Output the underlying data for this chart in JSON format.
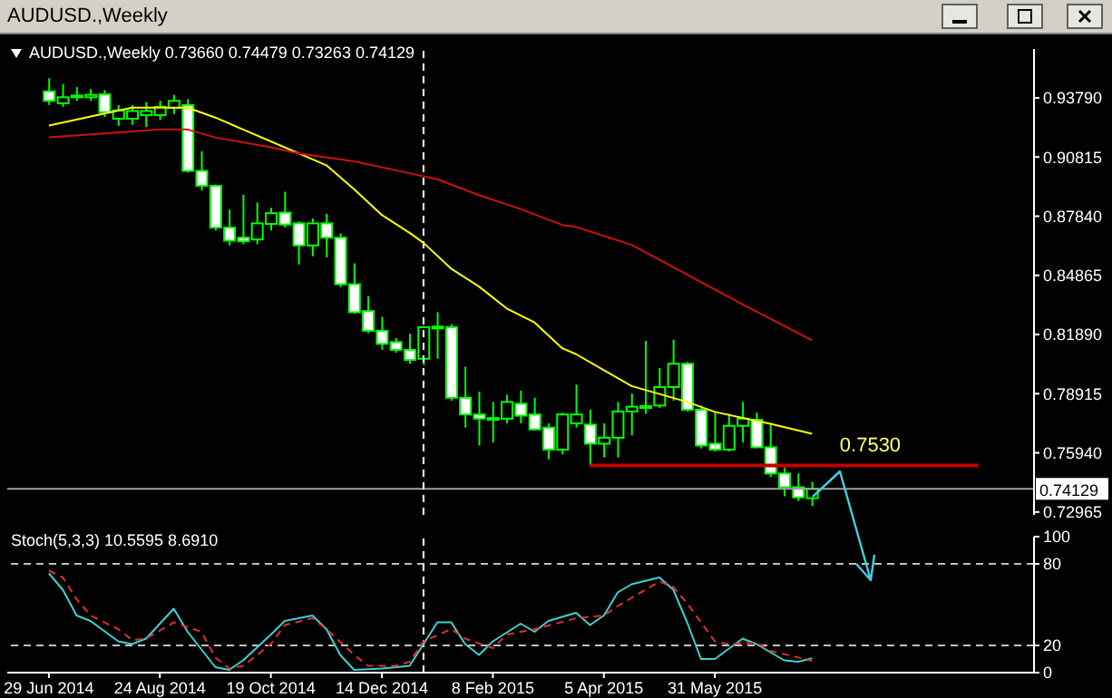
{
  "chart_data": [
    {
      "type": "candlestick",
      "title": "AUDUSD.,Weekly",
      "subtitle": "AUDUSD.,Weekly  0.73660 0.74479 0.73263 0.74129",
      "color": "#00ff00",
      "x": [
        "2014-06-29",
        "2014-07-06",
        "2014-07-13",
        "2014-07-20",
        "2014-07-27",
        "2014-08-03",
        "2014-08-10",
        "2014-08-17",
        "2014-08-24",
        "2014-08-31",
        "2014-09-07",
        "2014-09-14",
        "2014-09-21",
        "2014-09-28",
        "2014-10-05",
        "2014-10-12",
        "2014-10-19",
        "2014-10-26",
        "2014-11-02",
        "2014-11-09",
        "2014-11-16",
        "2014-11-23",
        "2014-11-30",
        "2014-12-07",
        "2014-12-14",
        "2014-12-21",
        "2014-12-28",
        "2015-01-04",
        "2015-01-11",
        "2015-01-18",
        "2015-01-25",
        "2015-02-01",
        "2015-02-08",
        "2015-02-15",
        "2015-02-22",
        "2015-03-01",
        "2015-03-08",
        "2015-03-15",
        "2015-03-22",
        "2015-03-29",
        "2015-04-05",
        "2015-04-12",
        "2015-04-19",
        "2015-04-26",
        "2015-05-03",
        "2015-05-10",
        "2015-05-17",
        "2015-05-24",
        "2015-05-31",
        "2015-06-07",
        "2015-06-14",
        "2015-06-21",
        "2015-06-28",
        "2015-07-05",
        "2015-07-12",
        "2015-07-19"
      ],
      "ohlc": [
        [
          0.9412,
          0.9478,
          0.9343,
          0.9364
        ],
        [
          0.9352,
          0.9448,
          0.9334,
          0.9382
        ],
        [
          0.9382,
          0.9433,
          0.9364,
          0.9391
        ],
        [
          0.9382,
          0.9424,
          0.9364,
          0.9394
        ],
        [
          0.9397,
          0.9418,
          0.9283,
          0.9307
        ],
        [
          0.9274,
          0.9343,
          0.9238,
          0.9316
        ],
        [
          0.9274,
          0.9343,
          0.9244,
          0.9313
        ],
        [
          0.9292,
          0.9358,
          0.9232,
          0.9313
        ],
        [
          0.9292,
          0.9364,
          0.9268,
          0.9334
        ],
        [
          0.9328,
          0.9394,
          0.9298,
          0.9364
        ],
        [
          0.9343,
          0.9373,
          0.9003,
          0.9012
        ],
        [
          0.9012,
          0.9111,
          0.8913,
          0.8937
        ],
        [
          0.8937,
          0.8943,
          0.8712,
          0.8727
        ],
        [
          0.8727,
          0.8817,
          0.8637,
          0.8661
        ],
        [
          0.8676,
          0.8892,
          0.8643,
          0.8658
        ],
        [
          0.8667,
          0.8853,
          0.8643,
          0.8748
        ],
        [
          0.8745,
          0.8826,
          0.8712,
          0.8799
        ],
        [
          0.8802,
          0.8907,
          0.8727,
          0.8742
        ],
        [
          0.8748,
          0.8757,
          0.8541,
          0.8637
        ],
        [
          0.8637,
          0.8772,
          0.8583,
          0.8748
        ],
        [
          0.8748,
          0.8796,
          0.8577,
          0.8676
        ],
        [
          0.8676,
          0.8697,
          0.8427,
          0.8442
        ],
        [
          0.8442,
          0.8547,
          0.8292,
          0.8301
        ],
        [
          0.8307,
          0.8382,
          0.8196,
          0.8208
        ],
        [
          0.8208,
          0.8277,
          0.8112,
          0.8142
        ],
        [
          0.8151,
          0.8172,
          0.8097,
          0.8112
        ],
        [
          0.8112,
          0.8193,
          0.8042,
          0.8061
        ],
        [
          0.8067,
          0.8232,
          0.8036,
          0.8226
        ],
        [
          0.8229,
          0.8301,
          0.8067,
          0.8223
        ],
        [
          0.8226,
          0.8241,
          0.7856,
          0.7871
        ],
        [
          0.7871,
          0.8027,
          0.7721,
          0.7787
        ],
        [
          0.7787,
          0.7901,
          0.7631,
          0.7766
        ],
        [
          0.7766,
          0.785,
          0.7646,
          0.7769
        ],
        [
          0.7766,
          0.7886,
          0.7742,
          0.785
        ],
        [
          0.7841,
          0.7907,
          0.7742,
          0.7781
        ],
        [
          0.7787,
          0.7871,
          0.7706,
          0.7712
        ],
        [
          0.7721,
          0.7742,
          0.7562,
          0.761
        ],
        [
          0.761,
          0.7796,
          0.7586,
          0.7787
        ],
        [
          0.7742,
          0.7937,
          0.7721,
          0.7787
        ],
        [
          0.7736,
          0.7811,
          0.7532,
          0.764
        ],
        [
          0.764,
          0.7742,
          0.7571,
          0.767
        ],
        [
          0.767,
          0.785,
          0.7571,
          0.7802
        ],
        [
          0.7802,
          0.7892,
          0.7682,
          0.7826
        ],
        [
          0.7826,
          0.8157,
          0.779,
          0.7829
        ],
        [
          0.7832,
          0.8021,
          0.782,
          0.7925
        ],
        [
          0.7925,
          0.8163,
          0.7856,
          0.8042
        ],
        [
          0.8042,
          0.8051,
          0.7802,
          0.7811
        ],
        [
          0.7811,
          0.7832,
          0.7616,
          0.7631
        ],
        [
          0.764,
          0.7796,
          0.7601,
          0.761
        ],
        [
          0.761,
          0.779,
          0.7601,
          0.773
        ],
        [
          0.773,
          0.785,
          0.7646,
          0.7766
        ],
        [
          0.776,
          0.7796,
          0.7616,
          0.7622
        ],
        [
          0.7622,
          0.7736,
          0.7472,
          0.749
        ],
        [
          0.749,
          0.752,
          0.7376,
          0.7421
        ],
        [
          0.7421,
          0.749,
          0.7352,
          0.737
        ],
        [
          0.7366,
          0.74479,
          0.73263,
          0.74129
        ]
      ],
      "series": [
        {
          "type": "line",
          "color": "#ffff00",
          "x": [
            "2014-06-29",
            "2014-07-27",
            "2014-08-10",
            "2014-08-24",
            "2014-09-07",
            "2014-09-21",
            "2014-10-05",
            "2014-10-19",
            "2014-11-02",
            "2014-11-16",
            "2014-11-30",
            "2014-12-14",
            "2014-12-28",
            "2015-01-04",
            "2015-01-18",
            "2015-02-01",
            "2015-02-15",
            "2015-03-01",
            "2015-03-15",
            "2015-03-22",
            "2015-04-05",
            "2015-04-19",
            "2015-05-03",
            "2015-05-17",
            "2015-05-31",
            "2015-06-14",
            "2015-06-28",
            "2015-07-19"
          ],
          "values": [
            0.924,
            0.93,
            0.933,
            0.933,
            0.933,
            0.928,
            0.922,
            0.916,
            0.91,
            0.904,
            0.892,
            0.879,
            0.87,
            0.865,
            0.852,
            0.843,
            0.832,
            0.825,
            0.812,
            0.809,
            0.801,
            0.793,
            0.789,
            0.785,
            0.78,
            0.777,
            0.774,
            0.769
          ]
        },
        {
          "type": "line",
          "color": "#d01010",
          "x": [
            "2014-06-29",
            "2014-07-27",
            "2014-08-24",
            "2014-09-07",
            "2014-09-21",
            "2014-10-19",
            "2014-11-02",
            "2014-11-30",
            "2014-12-28",
            "2015-01-11",
            "2015-02-01",
            "2015-02-22",
            "2015-03-15",
            "2015-03-22",
            "2015-04-19",
            "2015-05-17",
            "2015-06-14",
            "2015-07-19"
          ],
          "values": [
            0.918,
            0.92,
            0.922,
            0.922,
            0.918,
            0.913,
            0.91,
            0.906,
            0.9,
            0.897,
            0.889,
            0.882,
            0.874,
            0.873,
            0.864,
            0.849,
            0.834,
            0.816
          ]
        },
        {
          "type": "line",
          "color": "#c00000",
          "x": [
            "2015-03-29",
            "2015-10-11"
          ],
          "values": [
            0.753,
            0.753
          ]
        }
      ],
      "annotations": [
        {
          "text": "0.7530",
          "x": "2015-08-02",
          "y": 0.753
        }
      ],
      "ref_lines": [
        {
          "axis": "y",
          "value": 0.74129,
          "label": "0.74129",
          "color": "#a0a0a0"
        },
        {
          "axis": "x",
          "value": "2015-01-04",
          "color": "#ffffff",
          "line_style": "dashed"
        }
      ],
      "xlim": [
        "2014-06-08",
        "2015-11-08"
      ],
      "ylim": [
        0.7282,
        0.9625
      ],
      "yticks": [
        {
          "value": 0.9379,
          "label": "0.93790"
        },
        0.90815,
        {
          "value": 0.8784,
          "label": "0.87840"
        },
        0.84865,
        {
          "value": 0.8189,
          "label": "0.81890"
        },
        0.78915,
        {
          "value": 0.7594,
          "label": "0.75940"
        },
        0.72965
      ],
      "tick_labels": "y"
    },
    {
      "type": "line",
      "title": "Stoch(5,3,3) 10.5595 8.6910",
      "series": [
        {
          "color": "#40d0d0",
          "x": [
            "2014-06-29",
            "2014-07-06",
            "2014-07-13",
            "2014-07-20",
            "2014-08-03",
            "2014-08-10",
            "2014-08-17",
            "2014-08-31",
            "2014-09-07",
            "2014-09-21",
            "2014-09-28",
            "2014-10-05",
            "2014-10-19",
            "2014-10-26",
            "2014-11-09",
            "2014-11-16",
            "2014-11-23",
            "2014-11-30",
            "2014-12-14",
            "2014-12-28",
            "2015-01-04",
            "2015-01-11",
            "2015-01-18",
            "2015-01-25",
            "2015-02-01",
            "2015-02-08",
            "2015-02-22",
            "2015-03-01",
            "2015-03-08",
            "2015-03-22",
            "2015-03-29",
            "2015-04-05",
            "2015-04-12",
            "2015-04-19",
            "2015-05-03",
            "2015-05-10",
            "2015-05-17",
            "2015-05-24",
            "2015-05-31",
            "2015-06-14",
            "2015-06-21",
            "2015-07-05",
            "2015-07-12",
            "2015-07-19"
          ],
          "values": [
            73,
            61,
            42,
            38,
            23,
            21,
            25,
            47,
            30,
            4,
            2,
            9,
            28,
            38,
            42,
            32,
            13,
            2,
            3,
            5,
            21,
            37,
            37,
            21,
            13,
            23,
            36,
            30,
            38,
            44,
            35,
            42,
            59,
            65,
            70,
            61,
            37,
            10,
            10,
            25,
            21,
            9,
            8,
            10.5595
          ]
        },
        {
          "color": "#e03030",
          "line_style": "dashed",
          "x": [
            "2014-06-29",
            "2014-07-06",
            "2014-07-13",
            "2014-07-20",
            "2014-08-03",
            "2014-08-10",
            "2014-08-17",
            "2014-08-31",
            "2014-09-14",
            "2014-09-21",
            "2014-09-28",
            "2014-10-05",
            "2014-10-19",
            "2014-10-26",
            "2014-11-09",
            "2014-11-16",
            "2014-11-30",
            "2014-12-07",
            "2014-12-21",
            "2014-12-28",
            "2015-01-04",
            "2015-01-18",
            "2015-01-25",
            "2015-02-08",
            "2015-02-15",
            "2015-03-01",
            "2015-03-22",
            "2015-04-05",
            "2015-04-12",
            "2015-04-26",
            "2015-05-03",
            "2015-05-10",
            "2015-05-17",
            "2015-05-31",
            "2015-06-07",
            "2015-06-21",
            "2015-06-28",
            "2015-07-19"
          ],
          "values": [
            75,
            70,
            54,
            42,
            32,
            24,
            25,
            37,
            30,
            11,
            3,
            5,
            21,
            35,
            40,
            32,
            13,
            5,
            5,
            8,
            23,
            32,
            25,
            18,
            28,
            32,
            40,
            42,
            49,
            61,
            67,
            63,
            51,
            23,
            21,
            22,
            16,
            8.691
          ]
        }
      ],
      "ref_lines": [
        {
          "axis": "y",
          "value": 80,
          "color": "#c0c0c0",
          "line_style": "dashed"
        },
        {
          "axis": "y",
          "value": 20,
          "color": "#c0c0c0",
          "line_style": "dashed"
        },
        {
          "axis": "x",
          "value": "2015-01-04",
          "color": "#ffffff",
          "line_style": "dashed"
        }
      ],
      "xlim": [
        "2014-06-08",
        "2015-11-08"
      ],
      "xticks": [
        {
          "value": "2014-06-29",
          "label": "29 Jun 2014"
        },
        {
          "value": "2014-08-24",
          "label": "24 Aug 2014"
        },
        {
          "value": "2014-10-19",
          "label": "19 Oct 2014"
        },
        {
          "value": "2014-12-14",
          "label": "14 Dec 2014"
        },
        {
          "value": "2015-02-08",
          "label": "8 Feb 2015"
        },
        {
          "value": "2015-04-05",
          "label": "5 Apr 2015"
        },
        {
          "value": "2015-05-31",
          "label": "31 May 2015"
        }
      ],
      "ylim": [
        0,
        100
      ],
      "yticks": [
        0,
        20,
        80,
        100
      ]
    }
  ]
}
